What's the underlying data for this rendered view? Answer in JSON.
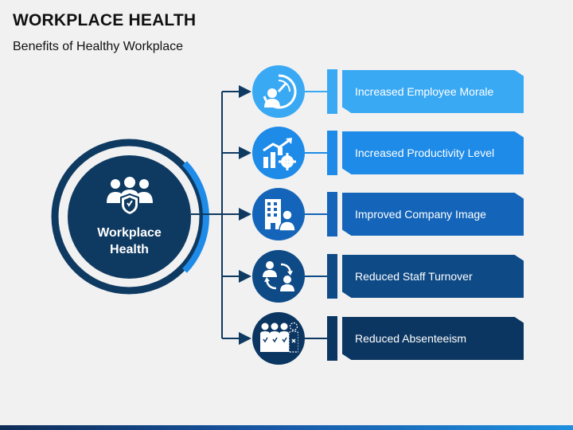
{
  "header": {
    "title": "WORKPLACE HEALTH",
    "subtitle": "Benefits of Healthy Workplace"
  },
  "hub": {
    "label": "Workplace Health",
    "icon": "people-shield-icon",
    "color": "#0e3a62"
  },
  "items": [
    {
      "label": "Increased Employee Morale",
      "icon": "speedometer-person-icon",
      "color": "#3aa9f4"
    },
    {
      "label": "Increased Productivity Level",
      "icon": "growth-chart-gear-icon",
      "color": "#1e8be8"
    },
    {
      "label": "Improved Company Image",
      "icon": "building-person-icon",
      "color": "#1465b9"
    },
    {
      "label": "Reduced Staff Turnover",
      "icon": "people-exchange-icon",
      "color": "#0e4a86"
    },
    {
      "label": "Reduced Absenteeism",
      "icon": "team-one-absent-icon",
      "color": "#0b3661"
    }
  ]
}
